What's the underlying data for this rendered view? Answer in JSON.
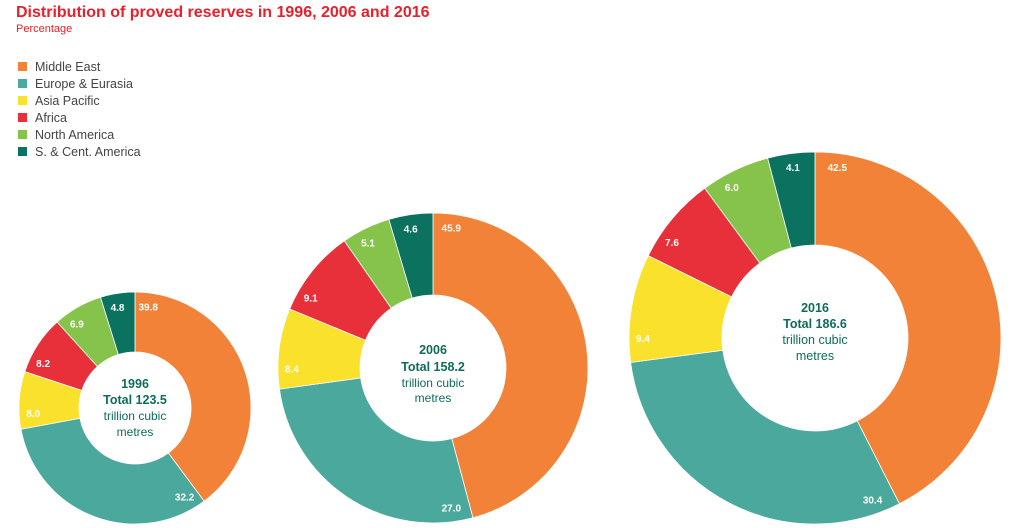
{
  "title": "Distribution of proved reserves in 1996, 2006 and 2016",
  "subtitle": "Percentage",
  "legend": [
    {
      "label": "Middle East",
      "color": "#f28237"
    },
    {
      "label": "Europe & Eurasia",
      "color": "#4aa99c"
    },
    {
      "label": "Asia Pacific",
      "color": "#f9e12c"
    },
    {
      "label": "Africa",
      "color": "#e8303b"
    },
    {
      "label": "North America",
      "color": "#86c34b"
    },
    {
      "label": "S. & Cent. America",
      "color": "#0b7260"
    }
  ],
  "chart_data": {
    "type": "pie",
    "title": "Distribution of proved reserves in 1996, 2006 and 2016",
    "subtitle": "Percentage",
    "categories": [
      "Middle East",
      "Europe & Eurasia",
      "Asia Pacific",
      "Africa",
      "North America",
      "S. & Cent. America"
    ],
    "series": [
      {
        "name": "1996",
        "total": "Total 123.5",
        "unit": [
          "trillion cubic",
          "metres"
        ],
        "values": [
          39.8,
          32.2,
          8.0,
          8.2,
          6.9,
          4.8
        ],
        "labels": [
          "39.8",
          "32.2",
          "8.0",
          "8.2",
          "6.9",
          "4.8"
        ]
      },
      {
        "name": "2006",
        "total": "Total 158.2",
        "unit": [
          "trillion cubic",
          "metres"
        ],
        "values": [
          45.9,
          27.0,
          8.4,
          9.1,
          5.1,
          4.6
        ],
        "labels": [
          "45.9",
          "27.0",
          "8.4",
          "9.1",
          "5.1",
          "4.6"
        ]
      },
      {
        "name": "2016",
        "total": "Total 186.6",
        "unit": [
          "trillion cubic",
          "metres"
        ],
        "values": [
          42.5,
          30.4,
          9.4,
          7.6,
          6.0,
          4.1
        ],
        "labels": [
          "42.5",
          "30.4",
          "9.4",
          "7.6",
          "6.0",
          "4.1"
        ]
      }
    ]
  }
}
